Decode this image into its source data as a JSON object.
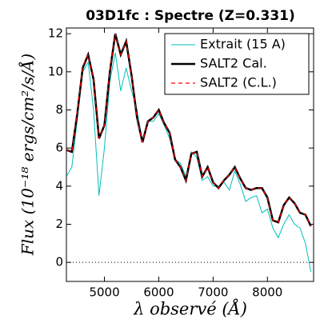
{
  "chart_data": {
    "type": "line",
    "title": "03D1fc : Spectre (Z=0.331)",
    "x_label": "λ observé (Å)",
    "y_label": "Flux (10⁻¹⁸ ergs/cm²/s/Å)",
    "x": [
      4300,
      4400,
      4500,
      4600,
      4700,
      4800,
      4900,
      5000,
      5100,
      5200,
      5300,
      5400,
      5500,
      5600,
      5700,
      5800,
      5900,
      6000,
      6100,
      6200,
      6300,
      6400,
      6500,
      6600,
      6700,
      6800,
      6900,
      7000,
      7100,
      7200,
      7300,
      7400,
      7500,
      7600,
      7700,
      7800,
      7900,
      8000,
      8100,
      8200,
      8300,
      8400,
      8500,
      8600,
      8700,
      8800
    ],
    "series": [
      {
        "name": "Extrait (15 A)",
        "color": "#00bfbf",
        "width": 1,
        "dash": "none",
        "values": [
          4.5,
          5.0,
          7.5,
          10.0,
          10.5,
          8.0,
          3.5,
          6.0,
          9.5,
          11.0,
          9.0,
          10.2,
          9.0,
          8.0,
          6.3,
          7.4,
          7.4,
          7.8,
          7.2,
          6.5,
          5.4,
          5.2,
          4.5,
          5.8,
          5.5,
          4.3,
          4.5,
          4.0,
          4.0,
          4.2,
          3.8,
          4.8,
          4.1,
          3.2,
          3.4,
          3.5,
          2.6,
          2.8,
          1.8,
          1.3,
          2.0,
          2.5,
          2.0,
          1.8,
          1.0,
          -0.5
        ]
      },
      {
        "name": "SALT2 Cal.",
        "color": "#000000",
        "width": 2.5,
        "dash": "none",
        "values": [
          5.9,
          5.8,
          7.8,
          10.2,
          10.9,
          9.6,
          6.5,
          7.2,
          10.0,
          12.0,
          10.9,
          11.6,
          9.8,
          7.6,
          6.3,
          7.4,
          7.6,
          8.0,
          7.3,
          6.8,
          5.4,
          5.0,
          4.3,
          5.7,
          5.8,
          4.5,
          5.0,
          4.2,
          3.9,
          4.3,
          4.6,
          5.0,
          4.4,
          3.9,
          3.8,
          3.9,
          3.9,
          3.4,
          2.2,
          2.1,
          3.0,
          3.4,
          3.1,
          2.6,
          2.5,
          1.9
        ]
      },
      {
        "name": "SALT2 (C.L.)",
        "color": "#ff0000",
        "width": 1.2,
        "dash": "5,4",
        "values": [
          5.9,
          5.8,
          7.9,
          10.3,
          10.9,
          9.6,
          6.5,
          7.2,
          10.1,
          12.0,
          10.9,
          11.6,
          9.8,
          7.6,
          6.3,
          7.4,
          7.6,
          8.0,
          7.3,
          6.8,
          5.4,
          5.0,
          4.3,
          5.7,
          5.8,
          4.5,
          5.0,
          4.2,
          3.9,
          4.3,
          4.6,
          5.0,
          4.4,
          3.9,
          3.8,
          3.9,
          3.9,
          3.4,
          2.2,
          2.1,
          3.0,
          3.4,
          3.1,
          2.6,
          2.5,
          1.9
        ]
      }
    ],
    "xlim": [
      4300,
      8850
    ],
    "ylim": [
      -1.0,
      12.3
    ],
    "xticks": [
      5000,
      6000,
      7000,
      8000
    ],
    "yticks": [
      0,
      2,
      4,
      6,
      8,
      10,
      12
    ],
    "hline": 0,
    "legend": "upper right"
  }
}
